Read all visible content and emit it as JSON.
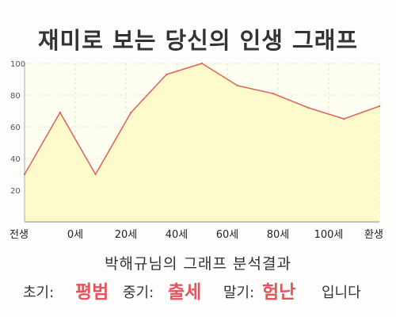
{
  "title": "재미로 보는 당신의 인생 그래프",
  "chart_data": {
    "type": "area",
    "title": "재미로 보는 당신의 인생 그래프",
    "x_tick_labels": [
      "전생",
      "0세",
      "20세",
      "40세",
      "60세",
      "80세",
      "100세",
      "환생"
    ],
    "y_ticks": [
      20,
      40,
      60,
      80,
      100
    ],
    "ylim": [
      0,
      100
    ],
    "grid": true,
    "series": [
      {
        "values": [
          30,
          69,
          30,
          69,
          93,
          100,
          86,
          81,
          72,
          65,
          73
        ]
      }
    ],
    "colors": {
      "line": "#e06666",
      "fill": "#fdfbc7",
      "grid": "#e4e4d2"
    }
  },
  "summary": {
    "heading": "박해규님의 그래프 분석결과",
    "early_label": "초기:",
    "early_value": "평범",
    "middle_label": "중기:",
    "middle_value": "출세",
    "late_label": "말기:",
    "late_value": "험난",
    "suffix": "입니다"
  }
}
